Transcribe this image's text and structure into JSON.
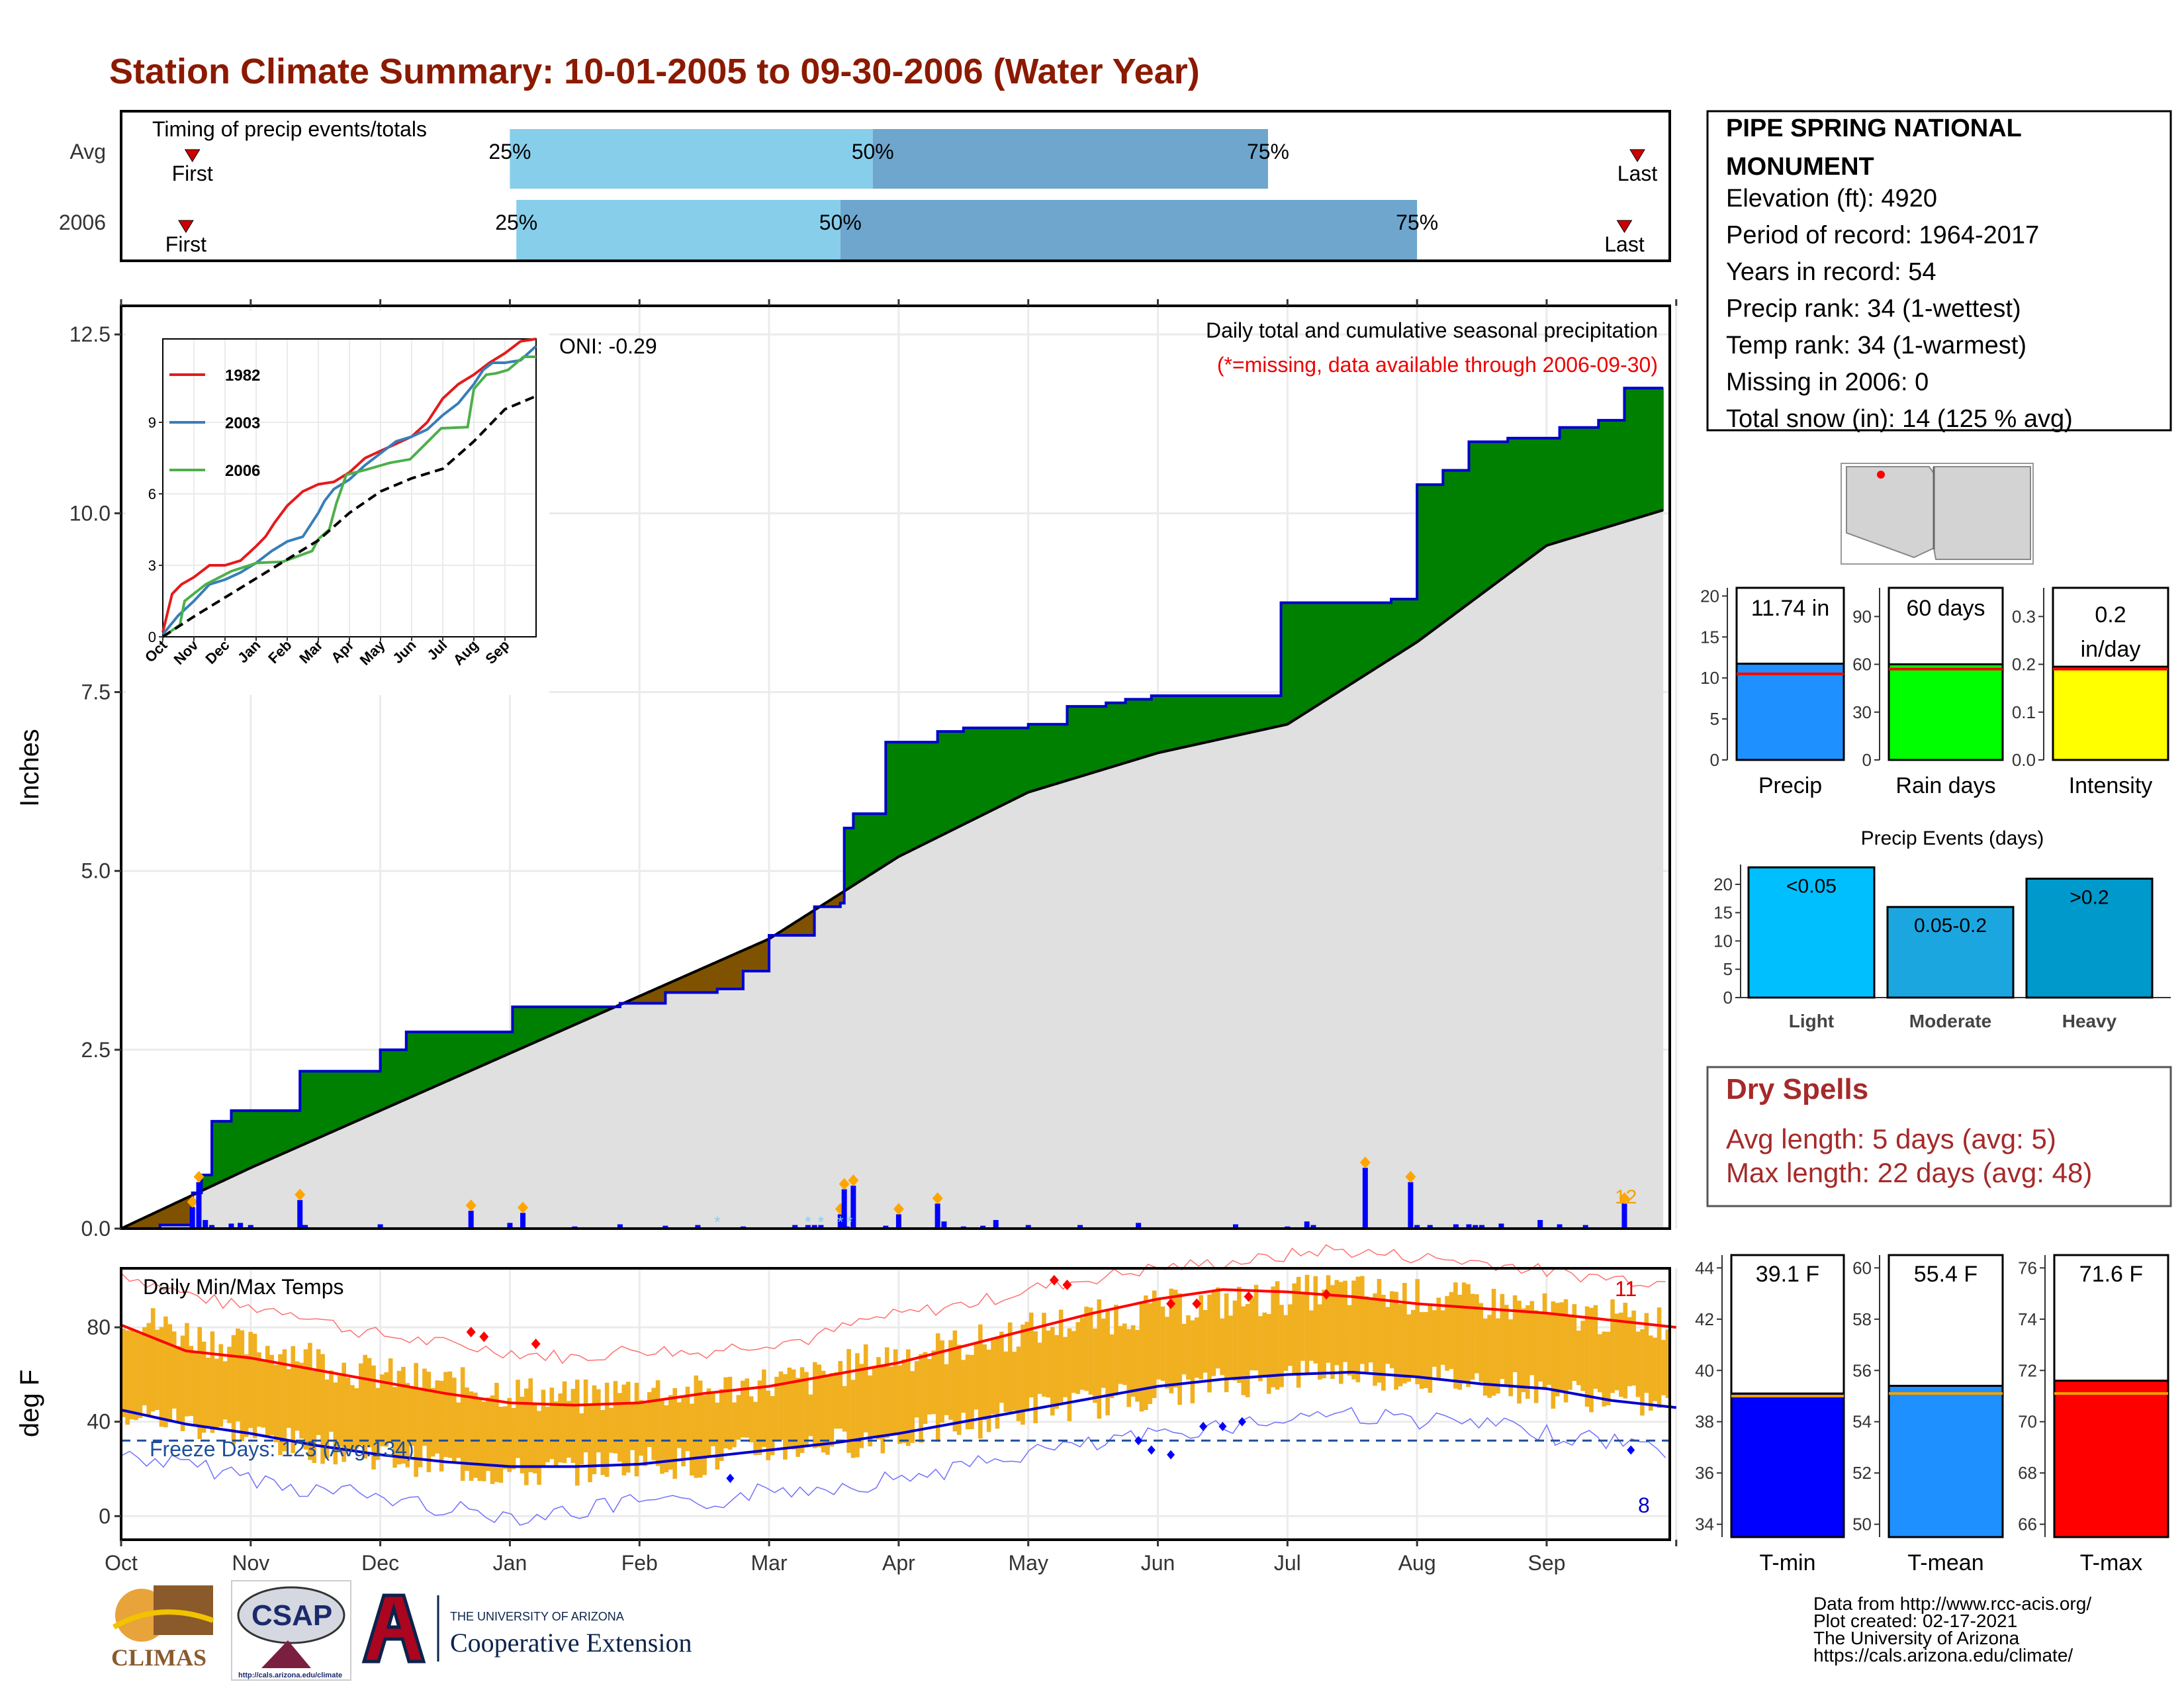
{
  "title": "Station Climate Summary: 10-01-2005 to 09-30-2006 (Water Year)",
  "timing": {
    "label": "Timing of precip events/totals",
    "rows": [
      {
        "name": "Avg",
        "first_month": 0.55,
        "p25_month": 3.0,
        "p50_month": 5.8,
        "p75_month": 8.85,
        "last_month": 11.7
      },
      {
        "name": "2006",
        "first_month": 0.5,
        "p25_month": 3.05,
        "p50_month": 5.55,
        "p75_month": 10.0,
        "last_month": 11.6
      }
    ],
    "first_label": "First",
    "last_label": "Last",
    "p25_label": "25%",
    "p50_label": "50%",
    "p75_label": "75%"
  },
  "station": {
    "name": "PIPE SPRING NATIONAL MONUMENT",
    "lines": [
      "Elevation (ft): 4920",
      "Period of record: 1964-2017",
      "Years in record: 54",
      "Precip rank: 34 (1-wettest)",
      "Temp rank: 34 (1-warmest)",
      "Missing in 2006: 0",
      "Total snow (in): 14 (125 % avg)"
    ]
  },
  "chart_data": [
    {
      "type": "area",
      "id": "precip",
      "title": "Daily total and cumulative seasonal precipitation",
      "subtitle": "(*=missing, data available through 2006-09-30)",
      "ylabel": "Inches",
      "ylim": [
        0,
        12.9
      ],
      "yticks": [
        "0.0",
        "2.5",
        "5.0",
        "7.5",
        "10.0",
        "12.5"
      ],
      "ytick_values": [
        0,
        2.5,
        5,
        7.5,
        10,
        12.5
      ],
      "oni": "ONI: -0.29",
      "max_label": "12",
      "series": [
        {
          "name": "2006 cumulative",
          "x_month": [
            0,
            0.3,
            0.55,
            0.62,
            0.7,
            0.85,
            1.38,
            2.0,
            2.2,
            3.02,
            3.55,
            3.85,
            4.2,
            4.6,
            4.8,
            5.0,
            5.35,
            5.55,
            5.58,
            5.65,
            5.9,
            6.3,
            6.5,
            6.6,
            7.0,
            7.2,
            7.3,
            7.45,
            7.6,
            7.75,
            7.95,
            8.95,
            9.25,
            9.35,
            9.8,
            10.0,
            10.2,
            10.3,
            10.4,
            10.6,
            10.7,
            11.1,
            11.4,
            11.6,
            11.9
          ],
          "y": [
            0,
            0.05,
            0.5,
            0.75,
            1.5,
            1.65,
            2.2,
            2.5,
            2.75,
            3.1,
            3.1,
            3.15,
            3.3,
            3.35,
            3.6,
            4.1,
            4.5,
            4.55,
            5.6,
            5.8,
            6.8,
            6.95,
            7.0,
            7.0,
            7.05,
            7.05,
            7.3,
            7.3,
            7.35,
            7.4,
            7.45,
            8.75,
            8.75,
            8.75,
            8.8,
            10.4,
            10.6,
            10.6,
            11.0,
            11.0,
            11.05,
            11.2,
            11.3,
            11.75,
            11.75
          ]
        },
        {
          "name": "Average cumulative",
          "x_month": [
            0,
            1,
            2,
            3,
            4,
            5,
            6,
            7,
            8,
            9,
            10,
            11,
            12
          ],
          "y": [
            0,
            0.85,
            1.65,
            2.45,
            3.25,
            4.05,
            5.2,
            6.1,
            6.65,
            7.05,
            8.2,
            9.55,
            10.1
          ]
        }
      ],
      "daily_bars": {
        "x_month": [
          0.55,
          0.6,
          0.65,
          0.7,
          0.85,
          0.92,
          1.0,
          1.38,
          1.42,
          1.42,
          2.0,
          2.7,
          3.0,
          3.1,
          3.5,
          3.85,
          4.2,
          4.45,
          4.8,
          5.2,
          5.3,
          5.35,
          5.4,
          5.55,
          5.58,
          5.6,
          5.65,
          5.9,
          6.0,
          6.3,
          6.35,
          6.5,
          6.65,
          6.75,
          7.0,
          7.4,
          7.85,
          8.6,
          9.0,
          9.15,
          9.2,
          9.6,
          9.95,
          10.0,
          10.1,
          10.3,
          10.4,
          10.45,
          10.5,
          10.65,
          10.95,
          11.1,
          11.3,
          11.6
        ],
        "y": [
          0.3,
          0.65,
          0.12,
          0.05,
          0.07,
          0.08,
          0.05,
          0.4,
          0.05,
          0.05,
          0.06,
          0.25,
          0.08,
          0.22,
          0.03,
          0.06,
          0.04,
          0.05,
          0.03,
          0.05,
          0.05,
          0.05,
          0.05,
          0.2,
          0.55,
          0.03,
          0.6,
          0.04,
          0.2,
          0.35,
          0.1,
          0.03,
          0.04,
          0.12,
          0.05,
          0.05,
          0.08,
          0.06,
          0.03,
          0.1,
          0.05,
          0.85,
          0.65,
          0.05,
          0.05,
          0.06,
          0.06,
          0.05,
          0.05,
          0.07,
          0.12,
          0.06,
          0.05,
          0.35
        ]
      },
      "inset": {
        "xticks": [
          "Oct",
          "Nov",
          "Dec",
          "Jan",
          "Feb",
          "Mar",
          "Apr",
          "May",
          "Jun",
          "Jul",
          "Aug",
          "Sep"
        ],
        "yticks": [
          "0",
          "3",
          "6",
          "9"
        ],
        "ylim": [
          0,
          12.5
        ],
        "series": [
          {
            "name": "1982",
            "color": "#e41a1c",
            "x_month": [
              0,
              0.3,
              0.6,
              1,
              1.5,
              2,
              2.5,
              3,
              3.3,
              3.6,
              4,
              4.5,
              5,
              5.5,
              6,
              6.5,
              7,
              7.5,
              8,
              8.5,
              9,
              9.5,
              10,
              10.5,
              11,
              11.5,
              12
            ],
            "y": [
              0.2,
              1.8,
              2.2,
              2.5,
              3,
              3.0,
              3.2,
              3.8,
              4.2,
              4.8,
              5.5,
              6.1,
              6.4,
              6.5,
              6.9,
              7.5,
              7.8,
              8.1,
              8.4,
              9.0,
              10.0,
              10.6,
              11.0,
              11.5,
              11.9,
              12.4,
              12.5
            ]
          },
          {
            "name": "2003",
            "color": "#377eb8",
            "x_month": [
              0,
              0.5,
              1,
              1.5,
              2,
              2.5,
              3,
              3.5,
              4,
              4.5,
              5,
              5.2,
              5.5,
              6,
              6.5,
              7,
              7.5,
              8,
              8.5,
              9,
              9.5,
              10,
              10.3,
              10.6,
              11,
              11.5,
              12
            ],
            "y": [
              0.1,
              0.9,
              1.5,
              2.2,
              2.4,
              2.7,
              3.1,
              3.6,
              4.0,
              4.2,
              5.2,
              5.7,
              6.2,
              6.6,
              7.2,
              7.7,
              8.2,
              8.4,
              8.7,
              9.3,
              9.8,
              10.6,
              11.2,
              11.5,
              11.5,
              11.6,
              12.2
            ]
          },
          {
            "name": "2006",
            "color": "#4daf4a",
            "x_month": [
              0,
              0.55,
              0.7,
              1.38,
              2.2,
              3.02,
              3.85,
              4.8,
              5.0,
              5.35,
              5.58,
              5.9,
              6.5,
              7.3,
              7.95,
              8.95,
              9.8,
              10.0,
              10.4,
              10.7,
              11.1,
              11.6,
              12
            ],
            "y": [
              0,
              0.5,
              1.5,
              2.2,
              2.75,
              3.1,
              3.15,
              3.6,
              4.1,
              4.5,
              5.6,
              6.8,
              7.0,
              7.3,
              7.45,
              8.75,
              8.8,
              10.4,
              11.0,
              11.05,
              11.2,
              11.75,
              11.75
            ]
          },
          {
            "name": "avg",
            "color": "#000000",
            "x_month": [
              0,
              1,
              2,
              3,
              4,
              5,
              6,
              7,
              8,
              9,
              10,
              11,
              12
            ],
            "y": [
              0,
              0.85,
              1.65,
              2.45,
              3.25,
              4.05,
              5.2,
              6.1,
              6.65,
              7.05,
              8.2,
              9.55,
              10.1
            ]
          }
        ]
      }
    },
    {
      "type": "line",
      "id": "temps",
      "title": "Daily Min/Max Temps",
      "ylabel": "deg F",
      "ylim": [
        -10,
        105
      ],
      "yticks": [
        "0",
        "40",
        "80"
      ],
      "ytick_values": [
        0,
        40,
        80
      ],
      "freeze_line": 32,
      "freeze_label": "Freeze Days: 123 (Avg:134)",
      "hot_count": "11",
      "cold_count": "8",
      "avg_max": {
        "x_month": [
          0,
          0.5,
          1,
          1.5,
          2,
          2.5,
          3,
          3.5,
          4,
          4.5,
          5,
          5.5,
          6,
          6.5,
          7,
          7.5,
          8,
          8.5,
          9,
          9.5,
          10,
          10.5,
          11,
          11.5,
          12
        ],
        "y": [
          81,
          70,
          67,
          62,
          57,
          52,
          48,
          47,
          48,
          52,
          55,
          60,
          65,
          72,
          79,
          86,
          92,
          96,
          95,
          93,
          90,
          88,
          86,
          83,
          80
        ]
      },
      "avg_min": {
        "x_month": [
          0,
          0.5,
          1,
          1.5,
          2,
          2.5,
          3,
          3.5,
          4,
          4.5,
          5,
          5.5,
          6,
          6.5,
          7,
          7.5,
          8,
          8.5,
          9,
          9.5,
          10,
          10.5,
          11,
          11.5,
          12
        ],
        "y": [
          45,
          39,
          35,
          30,
          26,
          23,
          21,
          21,
          22,
          25,
          28,
          31,
          35,
          40,
          45,
          50,
          55,
          58,
          60,
          61,
          59,
          56,
          54,
          49,
          46
        ]
      },
      "actual_max": [
        86,
        78,
        72,
        70,
        62,
        58,
        55,
        52,
        50,
        54,
        52,
        56,
        58,
        66,
        70,
        74,
        80,
        84,
        88,
        90,
        92,
        96,
        94,
        92,
        90,
        86,
        84,
        82
      ],
      "actual_min": [
        44,
        40,
        36,
        30,
        28,
        24,
        20,
        18,
        20,
        24,
        22,
        28,
        30,
        32,
        36,
        40,
        46,
        48,
        52,
        56,
        58,
        62,
        60,
        58,
        56,
        52,
        50,
        46
      ]
    },
    {
      "type": "bar",
      "id": "precip_stats",
      "panels": [
        {
          "name": "Precip",
          "label": "11.74 in",
          "value": 11.74,
          "avg": 10.5,
          "ylim": [
            0,
            21
          ],
          "yticks": [
            0,
            5,
            10,
            15,
            20
          ],
          "color": "#1e90ff"
        },
        {
          "name": "Rain days",
          "label": "60 days",
          "value": 60,
          "avg": 57,
          "ylim": [
            0,
            108
          ],
          "yticks": [
            0,
            30,
            60,
            90
          ],
          "color": "#00ff00"
        },
        {
          "name": "Intensity",
          "label": "0.2 in/day",
          "value": 0.195,
          "avg": 0.19,
          "ylim": [
            0,
            0.36
          ],
          "yticks": [
            0.0,
            0.1,
            0.2,
            0.3
          ],
          "color": "#ffff00"
        }
      ]
    },
    {
      "type": "bar",
      "id": "precip_events",
      "title": "Precip Events (days)",
      "categories": [
        "Light",
        "Moderate",
        "Heavy"
      ],
      "bar_labels": [
        "<0.05",
        "0.05-0.2",
        ">0.2"
      ],
      "values": [
        23,
        16,
        21
      ],
      "ylim": [
        0,
        23.5
      ],
      "yticks": [
        0,
        5,
        10,
        15,
        20
      ],
      "colors": [
        "#00bfff",
        "#1ca6e0",
        "#0099cc"
      ]
    },
    {
      "type": "bar",
      "id": "temp_stats",
      "panels": [
        {
          "name": "T-min",
          "label": "39.1 F",
          "value": 39.1,
          "avg": 39.0,
          "ylim": [
            33.5,
            44.5
          ],
          "yticks": [
            34,
            36,
            38,
            40,
            42,
            44
          ],
          "color": "#0000ff"
        },
        {
          "name": "T-mean",
          "label": "55.4 F",
          "value": 55.4,
          "avg": 55.1,
          "ylim": [
            49.5,
            60.5
          ],
          "yticks": [
            50,
            52,
            54,
            56,
            58,
            60
          ],
          "color": "#1e90ff"
        },
        {
          "name": "T-max",
          "label": "71.6 F",
          "value": 71.6,
          "avg": 71.1,
          "ylim": [
            65.5,
            76.5
          ],
          "yticks": [
            66,
            68,
            70,
            72,
            74,
            76
          ],
          "color": "#ff0000"
        }
      ]
    }
  ],
  "months": [
    "Oct",
    "Nov",
    "Dec",
    "Jan",
    "Feb",
    "Mar",
    "Apr",
    "May",
    "Jun",
    "Jul",
    "Aug",
    "Sep"
  ],
  "dry_spells": {
    "title": "Dry Spells",
    "avg": "Avg length: 5 days (avg: 5)",
    "max": "Max length: 22 days (avg: 48)"
  },
  "credits": {
    "lines": [
      "Data from http://www.rcc-acis.org/",
      "Plot created: 02-17-2021",
      "The University of Arizona",
      "https://cals.arizona.edu/climate/"
    ]
  },
  "logos": {
    "climas": "CLIMAS",
    "csap": "CSAP",
    "csap_url": "http://cals.arizona.edu/climate",
    "ua_small": "THE UNIVERSITY OF ARIZONA",
    "ua_big": "Cooperative Extension"
  },
  "colors": {
    "title": "#8b1a00",
    "green_area": "#008000",
    "brown_area": "#7f5200",
    "grey_area": "#e0e0e0",
    "step_line": "#0000cc",
    "temp_bar": "#f0b020",
    "dry_spell": "#a52a2a"
  }
}
